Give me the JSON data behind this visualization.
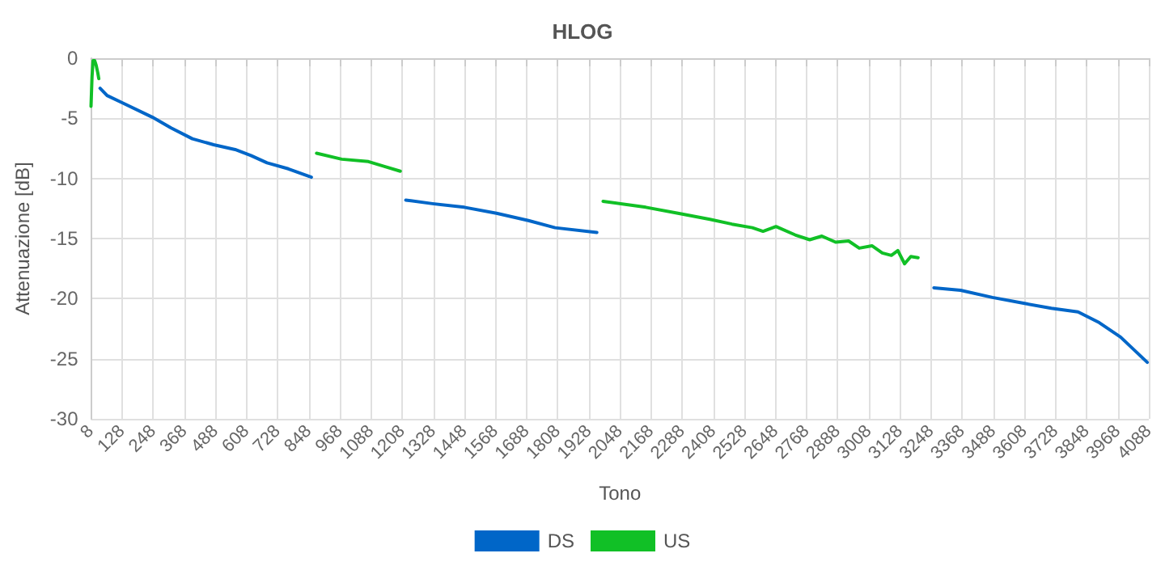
{
  "chart_data": {
    "type": "line",
    "title": "HLOG",
    "xlabel": "Tono",
    "ylabel": "Attenuazione [dB]",
    "xlim": [
      8,
      4088
    ],
    "ylim": [
      -30,
      0
    ],
    "xticks": [
      8,
      128,
      248,
      368,
      488,
      608,
      728,
      848,
      968,
      1088,
      1208,
      1328,
      1448,
      1568,
      1688,
      1808,
      1928,
      2048,
      2168,
      2288,
      2408,
      2528,
      2648,
      2768,
      2888,
      3008,
      3128,
      3248,
      3368,
      3488,
      3608,
      3728,
      3848,
      3968,
      4088
    ],
    "yticks": [
      -30,
      -25,
      -20,
      -15,
      -10,
      -5,
      0
    ],
    "grid": true,
    "legend": "bottom",
    "marker": "none",
    "line_style": "solid",
    "series": [
      {
        "name": "DS",
        "color": "#0066c8",
        "x": [
          43,
          70,
          128,
          244,
          317,
          399,
          481,
          564,
          625,
          687,
          769,
          858,
          1000,
          1222,
          1325,
          1448,
          1572,
          1695,
          1798,
          1959,
          2100,
          3259,
          3362,
          3485,
          3609,
          3712,
          3815,
          3897,
          3979,
          4082
        ],
        "values": [
          -2.5,
          -3.1,
          -3.7,
          -4.9,
          -5.8,
          -6.7,
          -7.2,
          -7.6,
          -8.1,
          -8.7,
          -9.2,
          -9.9,
          null,
          -11.8,
          -12.1,
          -12.4,
          -12.9,
          -13.5,
          -14.1,
          -14.5,
          null,
          -19.1,
          -19.3,
          -19.9,
          -20.4,
          -20.8,
          -21.1,
          -22.0,
          -23.2,
          -25.3
        ]
      },
      {
        "name": "US",
        "color": "#11c026",
        "x": [
          8,
          12,
          16,
          22,
          28,
          34,
          38,
          500,
          878,
          975,
          1078,
          1140,
          1201,
          1600,
          1983,
          2148,
          2272,
          2395,
          2480,
          2559,
          2600,
          2650,
          2724,
          2780,
          2827,
          2880,
          2930,
          2971,
          3020,
          3060,
          3095,
          3120,
          3146,
          3170,
          3198
        ],
        "values": [
          -4.0,
          -1.5,
          -0.2,
          -0.2,
          -0.6,
          -1.2,
          -1.7,
          null,
          -7.9,
          -8.4,
          -8.6,
          -9.0,
          -9.4,
          null,
          -11.9,
          -12.4,
          -12.9,
          -13.4,
          -13.8,
          -14.1,
          -14.4,
          -14.0,
          -14.7,
          -15.1,
          -14.8,
          -15.3,
          -15.2,
          -15.8,
          -15.6,
          -16.2,
          -16.4,
          -16.0,
          -17.1,
          -16.5,
          -16.6
        ]
      }
    ]
  }
}
